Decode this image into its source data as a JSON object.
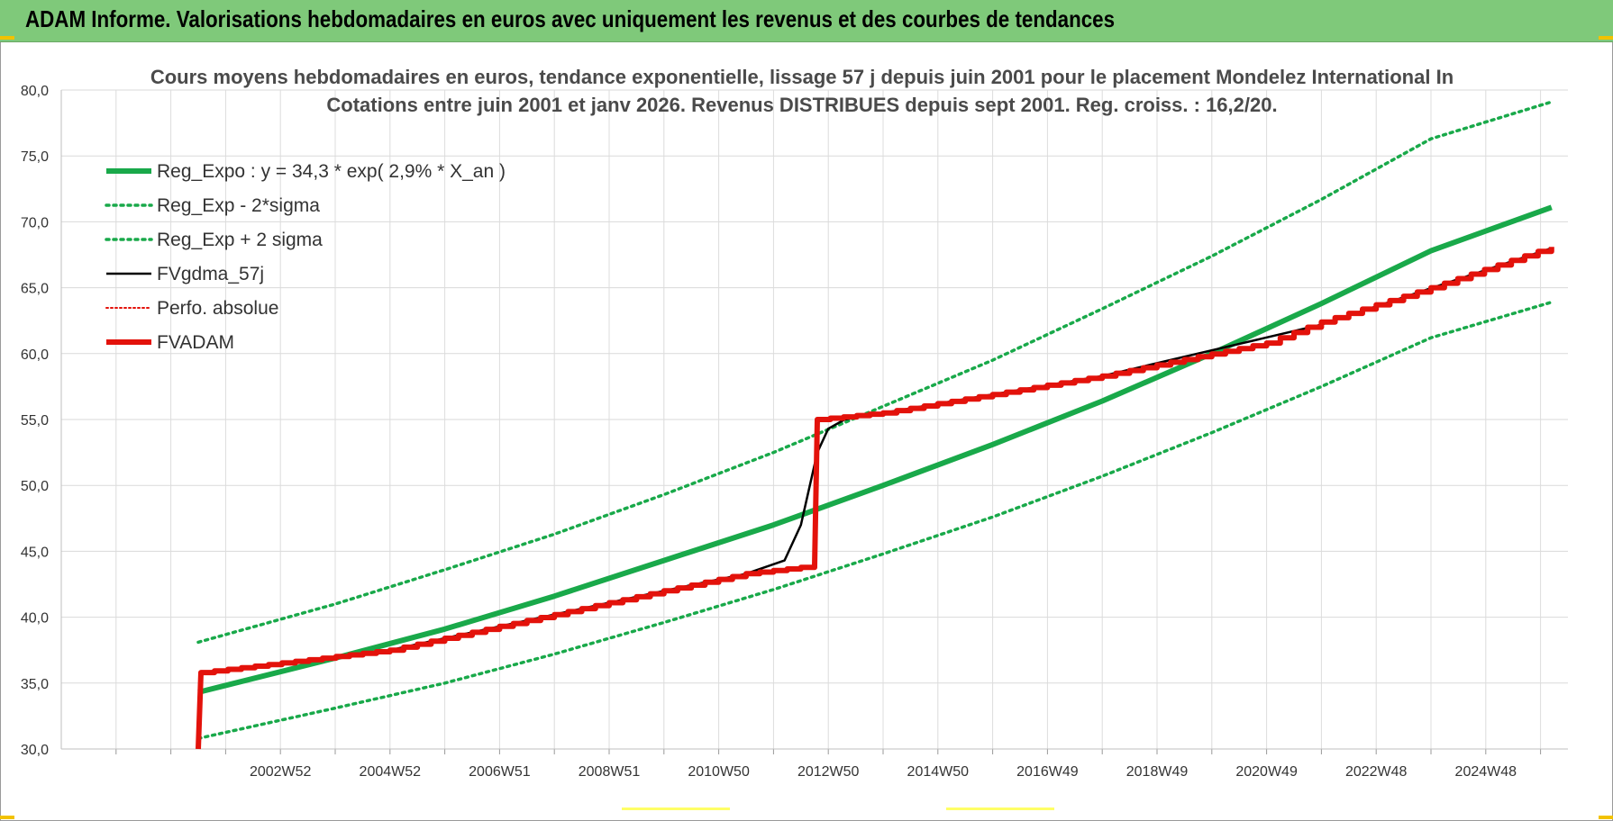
{
  "banner": {
    "title": "ADAM Informe. Valorisations hebdomadaires en euros avec uniquement les revenus et des courbes de tendances"
  },
  "colors": {
    "green": "#19a94a",
    "red": "#e3120b",
    "black": "#000000",
    "banner": "#7fc97a"
  },
  "chart_data": {
    "type": "line",
    "title": "Cours moyens hebdomadaires en euros, tendance exponentielle, lissage 57 j depuis juin 2001 pour le placement Mondelez International In",
    "subtitle": "Cotations entre juin 2001 et janv 2026. Revenus DISTRIBUES depuis sept 2001. Reg. croiss. : 16,2/20.",
    "xlabel": "",
    "ylabel": "",
    "ylim": [
      30,
      80
    ],
    "yticks": [
      "30,0",
      "35,0",
      "40,0",
      "45,0",
      "50,0",
      "55,0",
      "60,0",
      "65,0",
      "70,0",
      "75,0",
      "80,0"
    ],
    "xlim": [
      1999,
      2026.5
    ],
    "xticks": [
      {
        "label": "2002W52",
        "x": 2003.0
      },
      {
        "label": "2004W52",
        "x": 2005.0
      },
      {
        "label": "2006W51",
        "x": 2007.0
      },
      {
        "label": "2008W51",
        "x": 2009.0
      },
      {
        "label": "2010W50",
        "x": 2011.0
      },
      {
        "label": "2012W50",
        "x": 2013.0
      },
      {
        "label": "2014W50",
        "x": 2015.0
      },
      {
        "label": "2016W49",
        "x": 2017.0
      },
      {
        "label": "2018W49",
        "x": 2019.0
      },
      {
        "label": "2020W49",
        "x": 2021.0
      },
      {
        "label": "2022W48",
        "x": 2023.0
      },
      {
        "label": "2024W48",
        "x": 2025.0
      }
    ],
    "grid": true,
    "legend": "top-left",
    "series": [
      {
        "name": "Reg_Expo : y = 34,3 * exp( 2,9% *  X_an )",
        "style": "solid-thick",
        "color": "#19a94a",
        "x": [
          2001.5,
          2004,
          2006,
          2008,
          2010,
          2012,
          2014,
          2016,
          2018,
          2020,
          2022,
          2024,
          2026.2
        ],
        "values": [
          34.3,
          36.9,
          39.1,
          41.6,
          44.3,
          47.0,
          50.0,
          53.1,
          56.4,
          60.0,
          63.8,
          67.8,
          71.1
        ]
      },
      {
        "name": "Reg_Exp - 2*sigma",
        "style": "dotted",
        "color": "#19a94a",
        "x": [
          2001.5,
          2004,
          2006,
          2008,
          2010,
          2012,
          2014,
          2016,
          2018,
          2020,
          2022,
          2024,
          2026.2
        ],
        "values": [
          30.8,
          33.1,
          35.0,
          37.2,
          39.6,
          42.1,
          44.8,
          47.6,
          50.7,
          54.0,
          57.5,
          61.2,
          63.9
        ]
      },
      {
        "name": "Reg_Exp + 2 sigma",
        "style": "dotted",
        "color": "#19a94a",
        "x": [
          2001.5,
          2004,
          2006,
          2008,
          2010,
          2012,
          2014,
          2016,
          2018,
          2020,
          2022,
          2024,
          2026.2
        ],
        "values": [
          38.1,
          41.0,
          43.6,
          46.3,
          49.3,
          52.5,
          56.0,
          59.5,
          63.4,
          67.4,
          71.7,
          76.3,
          79.1
        ]
      },
      {
        "name": "FVgdma_57j",
        "style": "solid",
        "color": "#000000",
        "x": [
          2001.5,
          2001.55,
          2005,
          2010,
          2011.5,
          2012.2,
          2012.5,
          2012.8,
          2013.0,
          2013.3,
          2014,
          2018,
          2022,
          2026.2
        ],
        "values": [
          30.0,
          35.8,
          37.5,
          42.0,
          43.3,
          44.3,
          47.0,
          52.5,
          54.3,
          55.0,
          55.5,
          58.3,
          62.2,
          68.0
        ]
      },
      {
        "name": "Perfo. absolue",
        "style": "dotted-thin",
        "color": "#e3120b",
        "x": [],
        "values": []
      },
      {
        "name": "FVADAM",
        "style": "solid-thick",
        "color": "#e3120b",
        "x": [
          2001.5,
          2001.55,
          2005,
          2010,
          2011.5,
          2012.75,
          2012.8,
          2014,
          2018,
          2021,
          2022,
          2024,
          2026.2
        ],
        "values": [
          30.0,
          35.8,
          37.5,
          42.0,
          43.3,
          43.9,
          55.0,
          55.5,
          58.3,
          60.8,
          62.4,
          65.0,
          68.1
        ]
      }
    ]
  }
}
